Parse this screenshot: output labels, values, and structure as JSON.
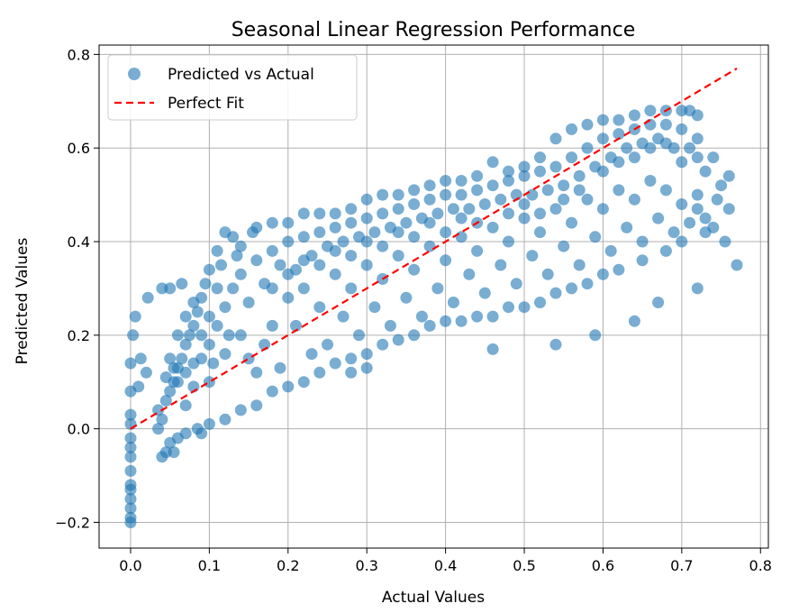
{
  "chart_data": {
    "type": "scatter",
    "title": "Seasonal Linear Regression Performance",
    "xlabel": "Actual Values",
    "ylabel": "Predicted Values",
    "xlim": [
      -0.04,
      0.81
    ],
    "ylim": [
      -0.255,
      0.82
    ],
    "x_ticks": [
      0.0,
      0.1,
      0.2,
      0.3,
      0.4,
      0.5,
      0.6,
      0.7,
      0.8
    ],
    "x_tick_labels": [
      "0.0",
      "0.1",
      "0.2",
      "0.3",
      "0.4",
      "0.5",
      "0.6",
      "0.7",
      "0.8"
    ],
    "y_ticks": [
      -0.2,
      0.0,
      0.2,
      0.4,
      0.6,
      0.8
    ],
    "y_tick_labels": [
      "−0.2",
      "0.0",
      "0.2",
      "0.4",
      "0.6",
      "0.8"
    ],
    "grid": true,
    "legend_position": "top-left",
    "series": [
      {
        "name": "Predicted vs Actual",
        "kind": "scatter",
        "color": "#1f77b4",
        "alpha": 0.6,
        "points": [
          [
            0.0,
            -0.2
          ],
          [
            0.0,
            -0.19
          ],
          [
            0.0,
            -0.17
          ],
          [
            0.0,
            -0.15
          ],
          [
            0.0,
            -0.13
          ],
          [
            0.0,
            -0.12
          ],
          [
            0.0,
            -0.09
          ],
          [
            0.0,
            -0.06
          ],
          [
            0.0,
            -0.04
          ],
          [
            0.0,
            -0.02
          ],
          [
            0.0,
            0.01
          ],
          [
            0.0,
            0.03
          ],
          [
            0.0,
            0.08
          ],
          [
            0.0,
            0.14
          ],
          [
            0.003,
            0.2
          ],
          [
            0.006,
            0.24
          ],
          [
            0.01,
            0.09
          ],
          [
            0.013,
            0.15
          ],
          [
            0.02,
            0.12
          ],
          [
            0.022,
            0.28
          ],
          [
            0.035,
            0.04
          ],
          [
            0.04,
            0.3
          ],
          [
            0.05,
            0.3
          ],
          [
            0.065,
            0.31
          ],
          [
            0.04,
            -0.06
          ],
          [
            0.045,
            -0.05
          ],
          [
            0.05,
            -0.03
          ],
          [
            0.055,
            -0.05
          ],
          [
            0.06,
            -0.02
          ],
          [
            0.07,
            -0.01
          ],
          [
            0.035,
            0.0
          ],
          [
            0.04,
            0.02
          ],
          [
            0.045,
            0.06
          ],
          [
            0.05,
            0.08
          ],
          [
            0.055,
            0.1
          ],
          [
            0.06,
            0.13
          ],
          [
            0.065,
            0.15
          ],
          [
            0.07,
            0.18
          ],
          [
            0.075,
            0.2
          ],
          [
            0.08,
            0.22
          ],
          [
            0.085,
            0.25
          ],
          [
            0.09,
            0.28
          ],
          [
            0.095,
            0.31
          ],
          [
            0.1,
            0.34
          ],
          [
            0.11,
            0.38
          ],
          [
            0.12,
            0.42
          ],
          [
            0.13,
            0.41
          ],
          [
            0.14,
            0.39
          ],
          [
            0.16,
            0.43
          ],
          [
            0.18,
            0.44
          ],
          [
            0.2,
            0.44
          ],
          [
            0.22,
            0.46
          ],
          [
            0.24,
            0.46
          ],
          [
            0.26,
            0.46
          ],
          [
            0.28,
            0.47
          ],
          [
            0.3,
            0.49
          ],
          [
            0.32,
            0.5
          ],
          [
            0.34,
            0.5
          ],
          [
            0.36,
            0.51
          ],
          [
            0.38,
            0.52
          ],
          [
            0.4,
            0.53
          ],
          [
            0.42,
            0.53
          ],
          [
            0.44,
            0.54
          ],
          [
            0.46,
            0.57
          ],
          [
            0.48,
            0.55
          ],
          [
            0.5,
            0.56
          ],
          [
            0.52,
            0.58
          ],
          [
            0.54,
            0.62
          ],
          [
            0.56,
            0.64
          ],
          [
            0.58,
            0.65
          ],
          [
            0.6,
            0.66
          ],
          [
            0.62,
            0.66
          ],
          [
            0.64,
            0.67
          ],
          [
            0.66,
            0.68
          ],
          [
            0.68,
            0.68
          ],
          [
            0.7,
            0.68
          ],
          [
            0.71,
            0.68
          ],
          [
            0.72,
            0.67
          ],
          [
            0.06,
            0.1
          ],
          [
            0.07,
            0.12
          ],
          [
            0.08,
            0.09
          ],
          [
            0.09,
            0.15
          ],
          [
            0.1,
            0.18
          ],
          [
            0.1,
            0.1
          ],
          [
            0.11,
            0.22
          ],
          [
            0.12,
            0.26
          ],
          [
            0.12,
            0.16
          ],
          [
            0.13,
            0.3
          ],
          [
            0.14,
            0.2
          ],
          [
            0.14,
            0.33
          ],
          [
            0.15,
            0.27
          ],
          [
            0.16,
            0.36
          ],
          [
            0.16,
            0.12
          ],
          [
            0.17,
            0.31
          ],
          [
            0.18,
            0.38
          ],
          [
            0.18,
            0.22
          ],
          [
            0.19,
            0.35
          ],
          [
            0.2,
            0.4
          ],
          [
            0.2,
            0.28
          ],
          [
            0.21,
            0.34
          ],
          [
            0.22,
            0.41
          ],
          [
            0.22,
            0.3
          ],
          [
            0.23,
            0.37
          ],
          [
            0.24,
            0.42
          ],
          [
            0.24,
            0.26
          ],
          [
            0.25,
            0.39
          ],
          [
            0.26,
            0.43
          ],
          [
            0.26,
            0.33
          ],
          [
            0.27,
            0.4
          ],
          [
            0.28,
            0.44
          ],
          [
            0.28,
            0.3
          ],
          [
            0.29,
            0.41
          ],
          [
            0.3,
            0.45
          ],
          [
            0.3,
            0.35
          ],
          [
            0.31,
            0.42
          ],
          [
            0.32,
            0.46
          ],
          [
            0.32,
            0.32
          ],
          [
            0.33,
            0.43
          ],
          [
            0.34,
            0.47
          ],
          [
            0.34,
            0.37
          ],
          [
            0.35,
            0.44
          ],
          [
            0.36,
            0.48
          ],
          [
            0.36,
            0.34
          ],
          [
            0.37,
            0.45
          ],
          [
            0.38,
            0.49
          ],
          [
            0.38,
            0.39
          ],
          [
            0.39,
            0.46
          ],
          [
            0.4,
            0.5
          ],
          [
            0.4,
            0.36
          ],
          [
            0.41,
            0.47
          ],
          [
            0.42,
            0.5
          ],
          [
            0.42,
            0.41
          ],
          [
            0.43,
            0.47
          ],
          [
            0.44,
            0.51
          ],
          [
            0.44,
            0.38
          ],
          [
            0.45,
            0.48
          ],
          [
            0.46,
            0.52
          ],
          [
            0.46,
            0.43
          ],
          [
            0.47,
            0.49
          ],
          [
            0.48,
            0.53
          ],
          [
            0.48,
            0.4
          ],
          [
            0.49,
            0.5
          ],
          [
            0.5,
            0.54
          ],
          [
            0.5,
            0.45
          ],
          [
            0.51,
            0.5
          ],
          [
            0.52,
            0.55
          ],
          [
            0.52,
            0.42
          ],
          [
            0.53,
            0.51
          ],
          [
            0.54,
            0.56
          ],
          [
            0.54,
            0.47
          ],
          [
            0.55,
            0.52
          ],
          [
            0.56,
            0.58
          ],
          [
            0.56,
            0.44
          ],
          [
            0.57,
            0.54
          ],
          [
            0.58,
            0.6
          ],
          [
            0.58,
            0.49
          ],
          [
            0.59,
            0.56
          ],
          [
            0.6,
            0.62
          ],
          [
            0.6,
            0.47
          ],
          [
            0.61,
            0.58
          ],
          [
            0.62,
            0.63
          ],
          [
            0.62,
            0.51
          ],
          [
            0.63,
            0.6
          ],
          [
            0.64,
            0.64
          ],
          [
            0.64,
            0.49
          ],
          [
            0.65,
            0.61
          ],
          [
            0.66,
            0.65
          ],
          [
            0.66,
            0.53
          ],
          [
            0.67,
            0.62
          ],
          [
            0.68,
            0.65
          ],
          [
            0.68,
            0.51
          ],
          [
            0.69,
            0.6
          ],
          [
            0.7,
            0.64
          ],
          [
            0.7,
            0.48
          ],
          [
            0.71,
            0.6
          ],
          [
            0.72,
            0.62
          ],
          [
            0.72,
            0.47
          ],
          [
            0.73,
            0.55
          ],
          [
            0.74,
            0.58
          ],
          [
            0.75,
            0.52
          ],
          [
            0.76,
            0.54
          ],
          [
            0.76,
            0.47
          ],
          [
            0.73,
            0.45
          ],
          [
            0.74,
            0.43
          ],
          [
            0.7,
            0.4
          ],
          [
            0.68,
            0.38
          ],
          [
            0.65,
            0.36
          ],
          [
            0.62,
            0.34
          ],
          [
            0.6,
            0.33
          ],
          [
            0.58,
            0.31
          ],
          [
            0.56,
            0.3
          ],
          [
            0.54,
            0.29
          ],
          [
            0.52,
            0.27
          ],
          [
            0.5,
            0.26
          ],
          [
            0.48,
            0.26
          ],
          [
            0.46,
            0.24
          ],
          [
            0.44,
            0.24
          ],
          [
            0.42,
            0.23
          ],
          [
            0.4,
            0.23
          ],
          [
            0.38,
            0.22
          ],
          [
            0.36,
            0.2
          ],
          [
            0.34,
            0.19
          ],
          [
            0.32,
            0.18
          ],
          [
            0.3,
            0.16
          ],
          [
            0.28,
            0.15
          ],
          [
            0.26,
            0.14
          ],
          [
            0.24,
            0.12
          ],
          [
            0.22,
            0.1
          ],
          [
            0.2,
            0.09
          ],
          [
            0.18,
            0.08
          ],
          [
            0.16,
            0.05
          ],
          [
            0.14,
            0.04
          ],
          [
            0.12,
            0.02
          ],
          [
            0.1,
            0.01
          ],
          [
            0.085,
            0.0
          ],
          [
            0.09,
            -0.01
          ],
          [
            0.07,
            0.05
          ],
          [
            0.08,
            0.14
          ],
          [
            0.09,
            0.2
          ],
          [
            0.1,
            0.24
          ],
          [
            0.11,
            0.3
          ],
          [
            0.105,
            0.14
          ],
          [
            0.115,
            0.35
          ],
          [
            0.125,
            0.2
          ],
          [
            0.135,
            0.37
          ],
          [
            0.15,
            0.15
          ],
          [
            0.155,
            0.42
          ],
          [
            0.17,
            0.18
          ],
          [
            0.19,
            0.13
          ],
          [
            0.21,
            0.22
          ],
          [
            0.23,
            0.16
          ],
          [
            0.25,
            0.18
          ],
          [
            0.27,
            0.24
          ],
          [
            0.29,
            0.2
          ],
          [
            0.31,
            0.26
          ],
          [
            0.33,
            0.22
          ],
          [
            0.35,
            0.28
          ],
          [
            0.37,
            0.24
          ],
          [
            0.39,
            0.3
          ],
          [
            0.41,
            0.27
          ],
          [
            0.43,
            0.33
          ],
          [
            0.45,
            0.29
          ],
          [
            0.47,
            0.35
          ],
          [
            0.49,
            0.31
          ],
          [
            0.51,
            0.37
          ],
          [
            0.53,
            0.33
          ],
          [
            0.55,
            0.39
          ],
          [
            0.57,
            0.35
          ],
          [
            0.59,
            0.41
          ],
          [
            0.61,
            0.38
          ],
          [
            0.63,
            0.43
          ],
          [
            0.65,
            0.4
          ],
          [
            0.67,
            0.45
          ],
          [
            0.69,
            0.42
          ],
          [
            0.71,
            0.44
          ],
          [
            0.72,
            0.5
          ],
          [
            0.3,
            0.13
          ],
          [
            0.28,
            0.12
          ],
          [
            0.46,
            0.17
          ],
          [
            0.54,
            0.18
          ],
          [
            0.59,
            0.2
          ],
          [
            0.64,
            0.23
          ],
          [
            0.67,
            0.27
          ],
          [
            0.72,
            0.3
          ],
          [
            0.755,
            0.4
          ],
          [
            0.77,
            0.35
          ],
          [
            0.745,
            0.49
          ],
          [
            0.73,
            0.42
          ],
          [
            0.4,
            0.42
          ],
          [
            0.42,
            0.45
          ],
          [
            0.44,
            0.44
          ],
          [
            0.38,
            0.44
          ],
          [
            0.36,
            0.41
          ],
          [
            0.34,
            0.42
          ],
          [
            0.32,
            0.39
          ],
          [
            0.3,
            0.4
          ],
          [
            0.28,
            0.37
          ],
          [
            0.26,
            0.38
          ],
          [
            0.24,
            0.35
          ],
          [
            0.22,
            0.36
          ],
          [
            0.2,
            0.33
          ],
          [
            0.18,
            0.3
          ],
          [
            0.5,
            0.48
          ],
          [
            0.52,
            0.46
          ],
          [
            0.48,
            0.46
          ],
          [
            0.55,
            0.49
          ],
          [
            0.57,
            0.51
          ],
          [
            0.6,
            0.55
          ],
          [
            0.62,
            0.57
          ],
          [
            0.64,
            0.58
          ],
          [
            0.66,
            0.6
          ],
          [
            0.68,
            0.61
          ],
          [
            0.7,
            0.57
          ],
          [
            0.72,
            0.58
          ],
          [
            0.05,
            0.15
          ],
          [
            0.06,
            0.2
          ],
          [
            0.07,
            0.24
          ],
          [
            0.08,
            0.27
          ],
          [
            0.045,
            0.11
          ],
          [
            0.055,
            0.13
          ]
        ]
      },
      {
        "name": "Perfect Fit",
        "kind": "line",
        "color": "#ff0000",
        "dash": true,
        "x": [
          0.0,
          0.77
        ],
        "y": [
          0.0,
          0.77
        ]
      }
    ]
  }
}
